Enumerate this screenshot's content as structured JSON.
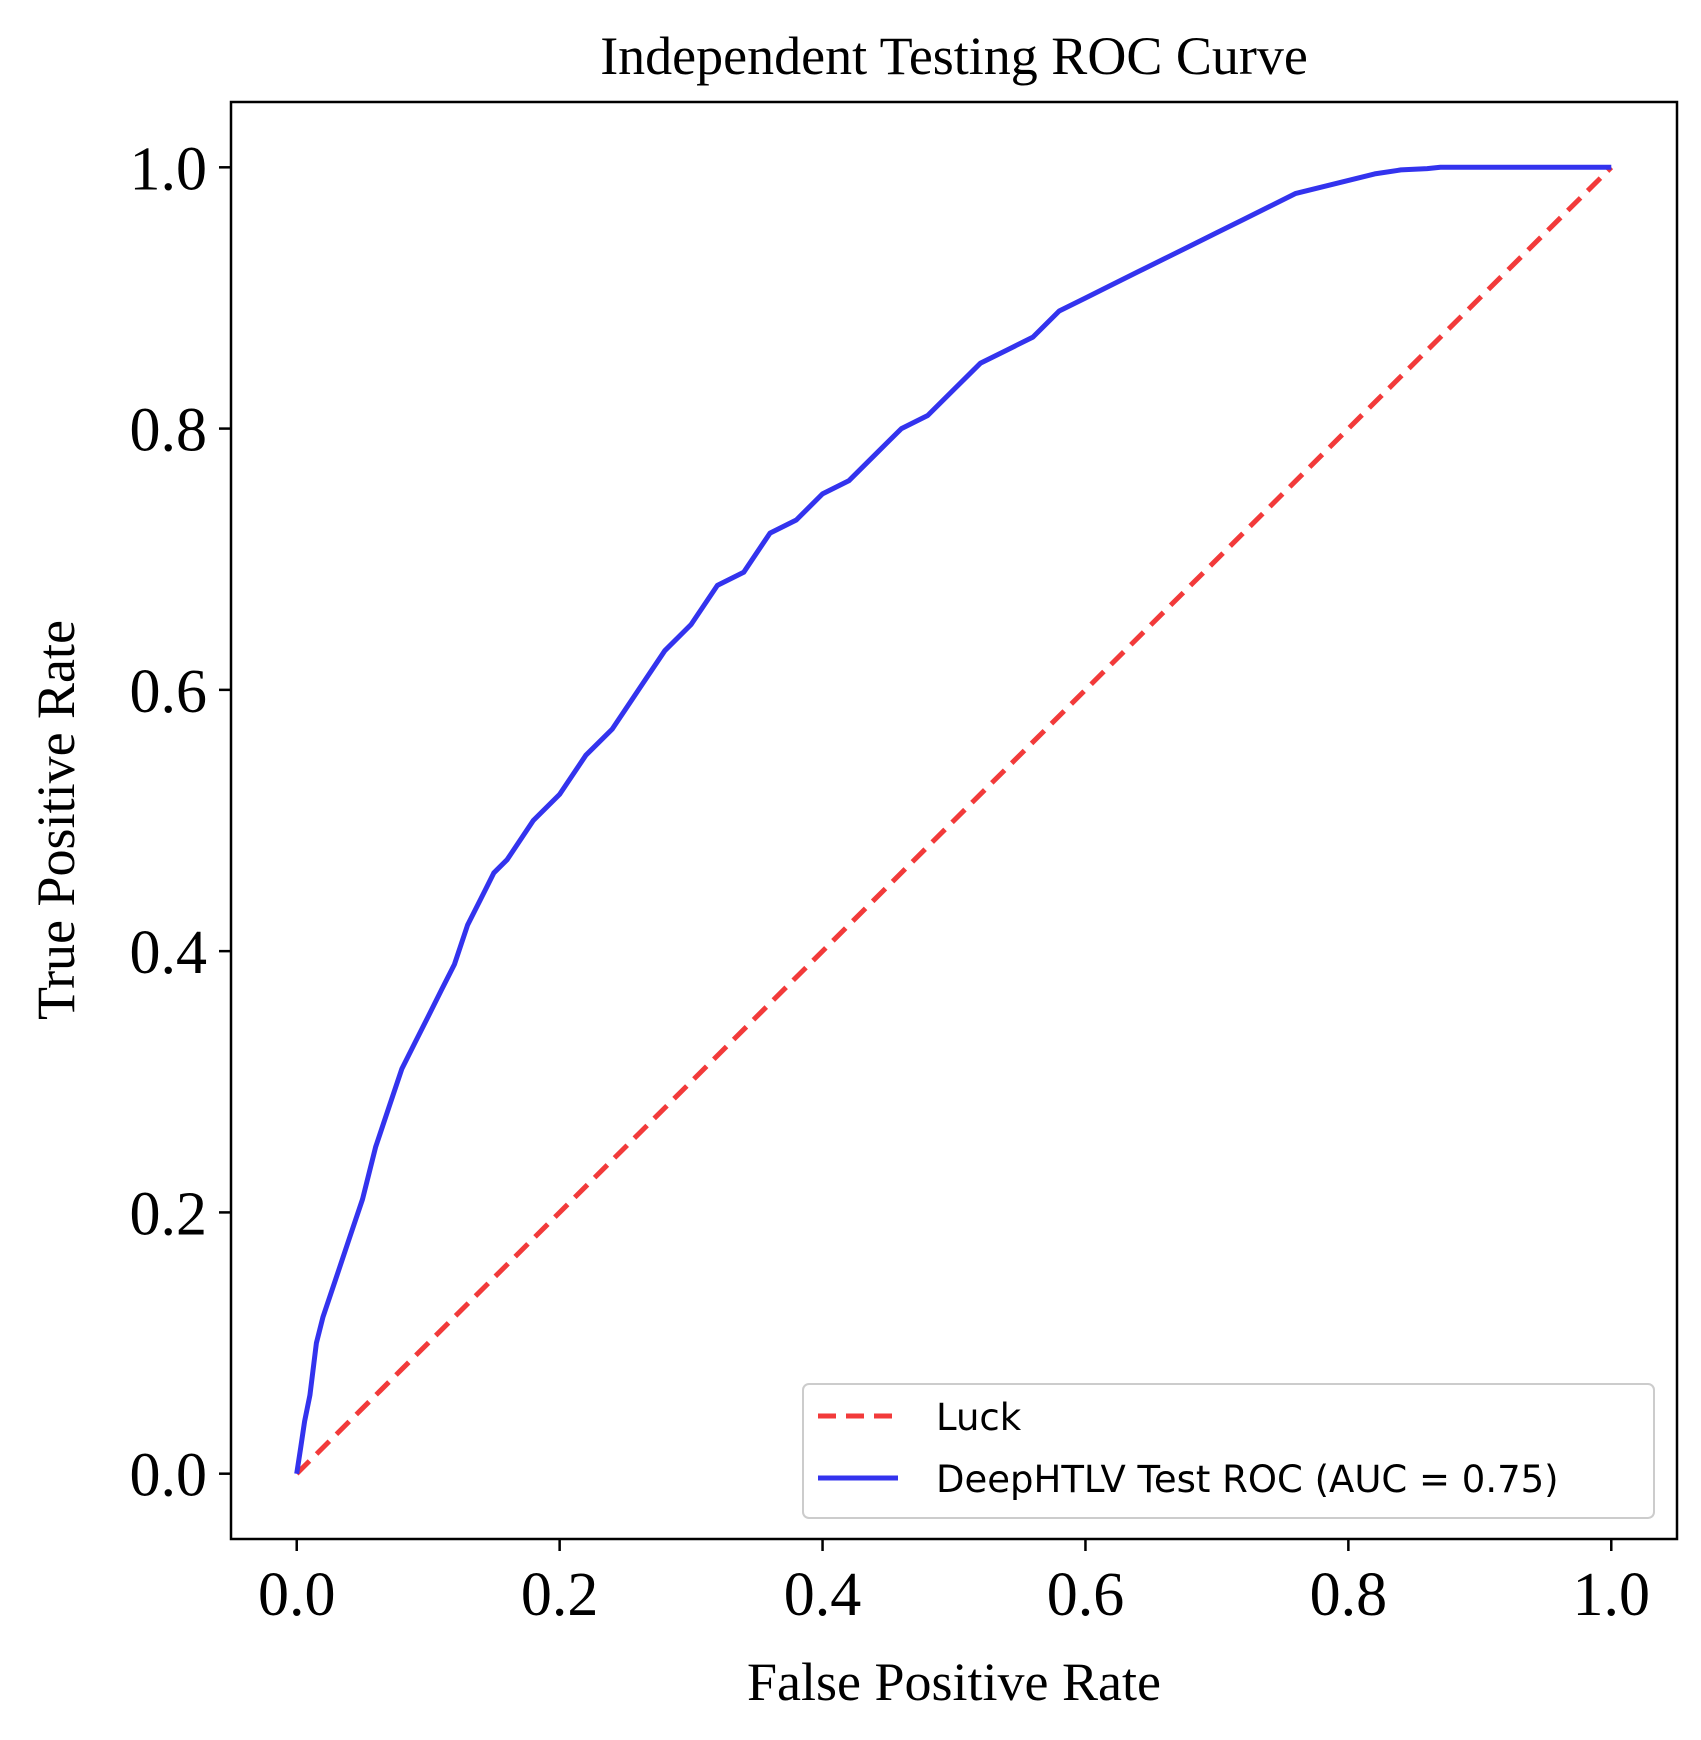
{
  "chart_data": {
    "type": "line",
    "title": "Independent Testing  ROC Curve",
    "xlabel": "False Positive Rate",
    "ylabel": "True Positive Rate",
    "xlim": [
      -0.05,
      1.05
    ],
    "ylim": [
      -0.05,
      1.05
    ],
    "x_ticks": [
      0.0,
      0.2,
      0.4,
      0.6,
      0.8,
      1.0
    ],
    "y_ticks": [
      0.0,
      0.2,
      0.4,
      0.6,
      0.8,
      1.0
    ],
    "x_tick_labels": [
      "0.0",
      "0.2",
      "0.4",
      "0.6",
      "0.8",
      "1.0"
    ],
    "y_tick_labels": [
      "0.0",
      "0.2",
      "0.4",
      "0.6",
      "0.8",
      "1.0"
    ],
    "grid": false,
    "legend_position": "lower-right",
    "series": [
      {
        "name": "Luck",
        "style": "dashed",
        "color": "#f23a3a",
        "x": [
          0.0,
          1.0
        ],
        "y": [
          0.0,
          1.0
        ]
      },
      {
        "name": "DeepHTLV Test ROC (AUC = 0.75)",
        "style": "solid",
        "color": "#3333ee",
        "x": [
          0.0,
          0.003,
          0.006,
          0.01,
          0.015,
          0.02,
          0.03,
          0.04,
          0.05,
          0.06,
          0.07,
          0.08,
          0.09,
          0.1,
          0.11,
          0.12,
          0.13,
          0.14,
          0.15,
          0.16,
          0.18,
          0.2,
          0.22,
          0.24,
          0.26,
          0.28,
          0.3,
          0.32,
          0.34,
          0.36,
          0.38,
          0.4,
          0.42,
          0.44,
          0.46,
          0.48,
          0.5,
          0.52,
          0.54,
          0.56,
          0.58,
          0.6,
          0.62,
          0.64,
          0.66,
          0.68,
          0.7,
          0.72,
          0.74,
          0.76,
          0.78,
          0.8,
          0.82,
          0.84,
          0.86,
          0.87,
          0.9,
          0.95,
          1.0
        ],
        "y": [
          0.0,
          0.02,
          0.04,
          0.06,
          0.1,
          0.12,
          0.15,
          0.18,
          0.21,
          0.25,
          0.28,
          0.31,
          0.33,
          0.35,
          0.37,
          0.39,
          0.42,
          0.44,
          0.46,
          0.47,
          0.5,
          0.52,
          0.55,
          0.57,
          0.6,
          0.63,
          0.65,
          0.68,
          0.69,
          0.72,
          0.73,
          0.75,
          0.76,
          0.78,
          0.8,
          0.81,
          0.83,
          0.85,
          0.86,
          0.87,
          0.89,
          0.9,
          0.91,
          0.92,
          0.93,
          0.94,
          0.95,
          0.96,
          0.97,
          0.98,
          0.985,
          0.99,
          0.995,
          0.998,
          0.999,
          1.0,
          1.0,
          1.0,
          1.0
        ]
      }
    ]
  }
}
